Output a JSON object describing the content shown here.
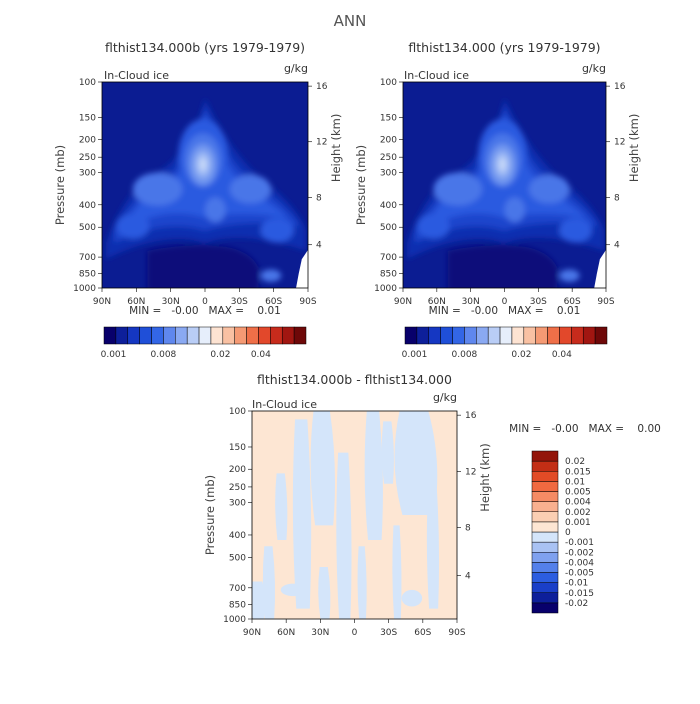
{
  "chart_data": {
    "type": "heatmap",
    "title": "ANN",
    "panels": [
      {
        "id": "case1",
        "title": "flthist134.000b (yrs 1979-1979)",
        "variable": "In-Cloud ice",
        "units": "g/kg",
        "ylabel": "Pressure (mb)",
        "ylabel_right": "Height (km)",
        "min_max_text": "MIN =   -0.00   MAX =    0.01",
        "x_ticks": [
          "90N",
          "60N",
          "30N",
          "0",
          "30S",
          "60S",
          "90S"
        ],
        "y_ticks": [
          "100",
          "150",
          "200",
          "250",
          "300",
          "400",
          "500",
          "700",
          "850",
          "1000"
        ],
        "height_ticks": [
          "16",
          "12",
          "8",
          "4"
        ]
      },
      {
        "id": "case2",
        "title": "flthist134.000 (yrs 1979-1979)",
        "variable": "In-Cloud ice",
        "units": "g/kg",
        "ylabel": "Pressure (mb)",
        "ylabel_right": "Height (km)",
        "min_max_text": "MIN =   -0.00   MAX =    0.01",
        "x_ticks": [
          "90N",
          "60N",
          "30N",
          "0",
          "30S",
          "60S",
          "90S"
        ],
        "y_ticks": [
          "100",
          "150",
          "200",
          "250",
          "300",
          "400",
          "500",
          "700",
          "850",
          "1000"
        ],
        "height_ticks": [
          "16",
          "12",
          "8",
          "4"
        ]
      },
      {
        "id": "diff",
        "title": "flthist134.000b - flthist134.000",
        "variable": "In-Cloud ice",
        "units": "g/kg",
        "ylabel": "Pressure (mb)",
        "ylabel_right": "Height (km)",
        "min_max_text": "MIN =   -0.00   MAX =    0.00",
        "x_ticks": [
          "90N",
          "60N",
          "30N",
          "0",
          "30S",
          "60S",
          "90S"
        ],
        "y_ticks": [
          "100",
          "150",
          "200",
          "250",
          "300",
          "400",
          "500",
          "700",
          "850",
          "1000"
        ],
        "height_ticks": [
          "16",
          "12",
          "8",
          "4"
        ]
      }
    ],
    "colorbar_main": {
      "colors": [
        "#08006b",
        "#0d1f9a",
        "#1537c2",
        "#1f4fd8",
        "#3366e6",
        "#5f87ee",
        "#8aa9f2",
        "#b9cdf6",
        "#e6eefb",
        "#fde3d2",
        "#f9c1a3",
        "#f59a74",
        "#ef6f48",
        "#e2482b",
        "#c72b1c",
        "#a11611",
        "#6e0808"
      ],
      "labels": [
        "0.001",
        "0.008",
        "0.02",
        "0.04"
      ]
    },
    "colorbar_diff": {
      "colors": [
        "#08006b",
        "#0d1f9a",
        "#1a3fc8",
        "#2c5de0",
        "#5480ea",
        "#7fa1ef",
        "#a9c2f3",
        "#d4e5fa",
        "#fde6d3",
        "#fbcfb3",
        "#f9b08f",
        "#f58b64",
        "#f06940",
        "#e24b26",
        "#c32e15",
        "#93150a"
      ],
      "labels": [
        "0.02",
        "0.015",
        "0.01",
        "0.005",
        "0.004",
        "0.002",
        "0.001",
        "0",
        "-0.001",
        "-0.002",
        "-0.004",
        "-0.005",
        "-0.01",
        "-0.015",
        "-0.02"
      ]
    }
  }
}
